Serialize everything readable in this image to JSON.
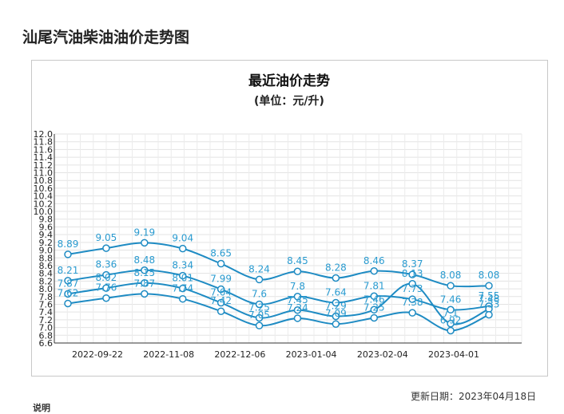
{
  "page": {
    "title": "汕尾汽油柴油油价走势图",
    "update_date": "更新日期：2023年04月18日",
    "notes_label": "说明"
  },
  "chart_data": {
    "type": "line",
    "title": "最近油价走势",
    "subtitle": "(单位：元/升)",
    "x_tick_labels": [
      "2022-09-22",
      "2022-11-08",
      "2022-12-06",
      "2023-01-04",
      "2023-02-04",
      "2023-04-01"
    ],
    "ylim": [
      6.6,
      12.0
    ],
    "y_step": 0.2,
    "grid": true,
    "line_color": "#1e8bc3",
    "label_color": "#2a9bd0",
    "series": [
      {
        "values": [
          8.89,
          9.05,
          9.19,
          9.04,
          8.65,
          8.24,
          8.45,
          8.28,
          8.46,
          8.37,
          8.08,
          8.08
        ]
      },
      {
        "values": [
          8.21,
          8.36,
          8.48,
          8.34,
          7.99,
          7.6,
          7.8,
          7.64,
          7.81,
          7.73,
          7.46,
          7.55
        ]
      },
      {
        "values": [
          7.87,
          8.02,
          8.15,
          8.01,
          7.64,
          7.25,
          7.45,
          7.29,
          7.46,
          8.13,
          7.1,
          7.48
        ]
      },
      {
        "values": [
          7.62,
          7.76,
          7.87,
          7.74,
          7.42,
          7.05,
          7.24,
          7.09,
          7.25,
          7.38,
          6.92,
          7.33
        ]
      }
    ]
  }
}
